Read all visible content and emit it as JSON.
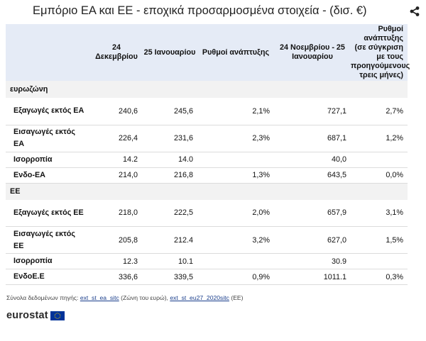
{
  "title": "Εμπόριο ΕΑ και ΕΕ - εποχικά προσαρμοσμένα στοιχεία - (δισ. €)",
  "share_icon": "share-icon",
  "chart_data": {
    "type": "table",
    "title": "Εμπόριο ΕΑ και ΕΕ - εποχικά προσαρμοσμένα στοιχεία - (δισ. €)",
    "columns": [
      "",
      "24 Δεκεμβρίου",
      "25 Ιανουαρίου",
      "Ρυθμοί ανάπτυξης",
      "24 Νοεμβρίου - 25 Ιανουαρίου",
      "Ρυθμοί ανάπτυξης (σε σύγκριση με τους προηγούμενους τρεις μήνες)"
    ],
    "groups": [
      {
        "name": "ευρωζώνη",
        "rows": [
          {
            "label": "Εξαγωγές εκτός ΕΑ",
            "values": [
              "240,6",
              "245,6",
              "2,1%",
              "727,1",
              "2,7%"
            ]
          },
          {
            "label": "Εισαγωγές εκτός ΕΑ",
            "values": [
              "226,4",
              "231,6",
              "2,3%",
              "687,1",
              "1,2%"
            ]
          },
          {
            "label": "Ισορροπία",
            "values": [
              "14.2",
              "14.0",
              "",
              "40,0",
              ""
            ]
          },
          {
            "label": "Ενδο-ΕΑ",
            "values": [
              "214,0",
              "216,8",
              "1,3%",
              "643,5",
              "0,0%"
            ]
          }
        ]
      },
      {
        "name": "ΕΕ",
        "rows": [
          {
            "label": "Εξαγωγές εκτός ΕΕ",
            "values": [
              "218,0",
              "222,5",
              "2,0%",
              "657,9",
              "3,1%"
            ]
          },
          {
            "label": "Εισαγωγές εκτός ΕΕ",
            "values": [
              "205,8",
              "212.4",
              "3,2%",
              "627,0",
              "1,5%"
            ]
          },
          {
            "label": "Ισορροπία",
            "values": [
              "12.3",
              "10.1",
              "",
              "30.9",
              ""
            ]
          },
          {
            "label": "ΕνδοΕ.Ε",
            "values": [
              "336,6",
              "339,5",
              "0,9%",
              "1011.1",
              "0,3%"
            ]
          }
        ]
      }
    ]
  },
  "source": {
    "prefix": "Σύνολα δεδομένων πηγής: ",
    "link1": "ext_st_ea_sitc",
    "middle": " (Ζώνη του ευρώ), ",
    "link2": "ext_st_eu27_2020sitc",
    "suffix": " (ΕΕ)"
  },
  "logo": {
    "text": "eurostat",
    "flag_icon": "eu-flag-icon",
    "flag_color": "#003399",
    "star_color": "#ffcc00"
  }
}
